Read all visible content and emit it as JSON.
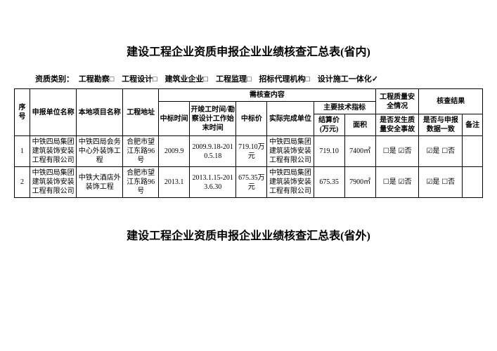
{
  "title1": "建设工程企业资质申报企业业绩核查汇总表(省内)",
  "title2": "建设工程企业资质申报企业业绩核查汇总表(省外)",
  "qual": {
    "label": "资质类别：",
    "items": [
      {
        "name": "工程勘察□",
        "mark": ""
      },
      {
        "name": "工程设计□",
        "mark": ""
      },
      {
        "name": "建筑业企业□",
        "mark": ""
      },
      {
        "name": "工程监理□",
        "mark": ""
      },
      {
        "name": "招标代理机构□",
        "mark": ""
      },
      {
        "name": "设计施工一体化",
        "mark": "✓"
      }
    ]
  },
  "head": {
    "idx": "序号",
    "unit": "申报单位名称",
    "proj": "本地项目名称",
    "addr": "工程地址",
    "review": "需核查内容",
    "safety": "工程质量安全情况",
    "result": "核查结果",
    "bidtime": "中标时间",
    "date": "开竣工时间/勘察设计工作始末时间",
    "price": "中标价",
    "complete": "实际完成单位",
    "tech": "主要技术指标",
    "settle": "结算价(万元)",
    "area": "面积",
    "safetyQ": "是否发生质量安全事故",
    "match": "是否与申报数据一致",
    "note": "备注"
  },
  "chk": {
    "yes_on": "☑是",
    "yes_off": "☐是",
    "no_on": "☑否",
    "no_off": "☐否"
  },
  "rows": [
    {
      "idx": "1",
      "unit": "中铁四局集团建筑装饰安装工程有限公司",
      "proj": "中铁四局会务中心外装饰工程",
      "addr": "合肥市望江东路96号",
      "bidtime": "2009.9",
      "date": "2009.9.18-2010.5.18",
      "price": "719.10万元",
      "complete": "中铁四局集团建筑装饰安装工程有限公司",
      "settle": "719.10",
      "area": "7400㎡",
      "safety": "☐是 ☑否",
      "match": "☑是 ☐否",
      "note": ""
    },
    {
      "idx": "2",
      "unit": "中铁四局集团建筑装饰安装工程有限公司",
      "proj": "中铁大酒店外装饰工程",
      "addr": "合肥市望江东路96号",
      "bidtime": "2013.1",
      "date": "2013.1.15-2013.6.30",
      "price": "675.35万元",
      "complete": "中铁四局集团建筑装饰安装工程有限公司",
      "settle": "675.35",
      "area": "7900㎡",
      "safety": "☐是 ☑否",
      "match": "☑是 ☐否",
      "note": ""
    }
  ]
}
